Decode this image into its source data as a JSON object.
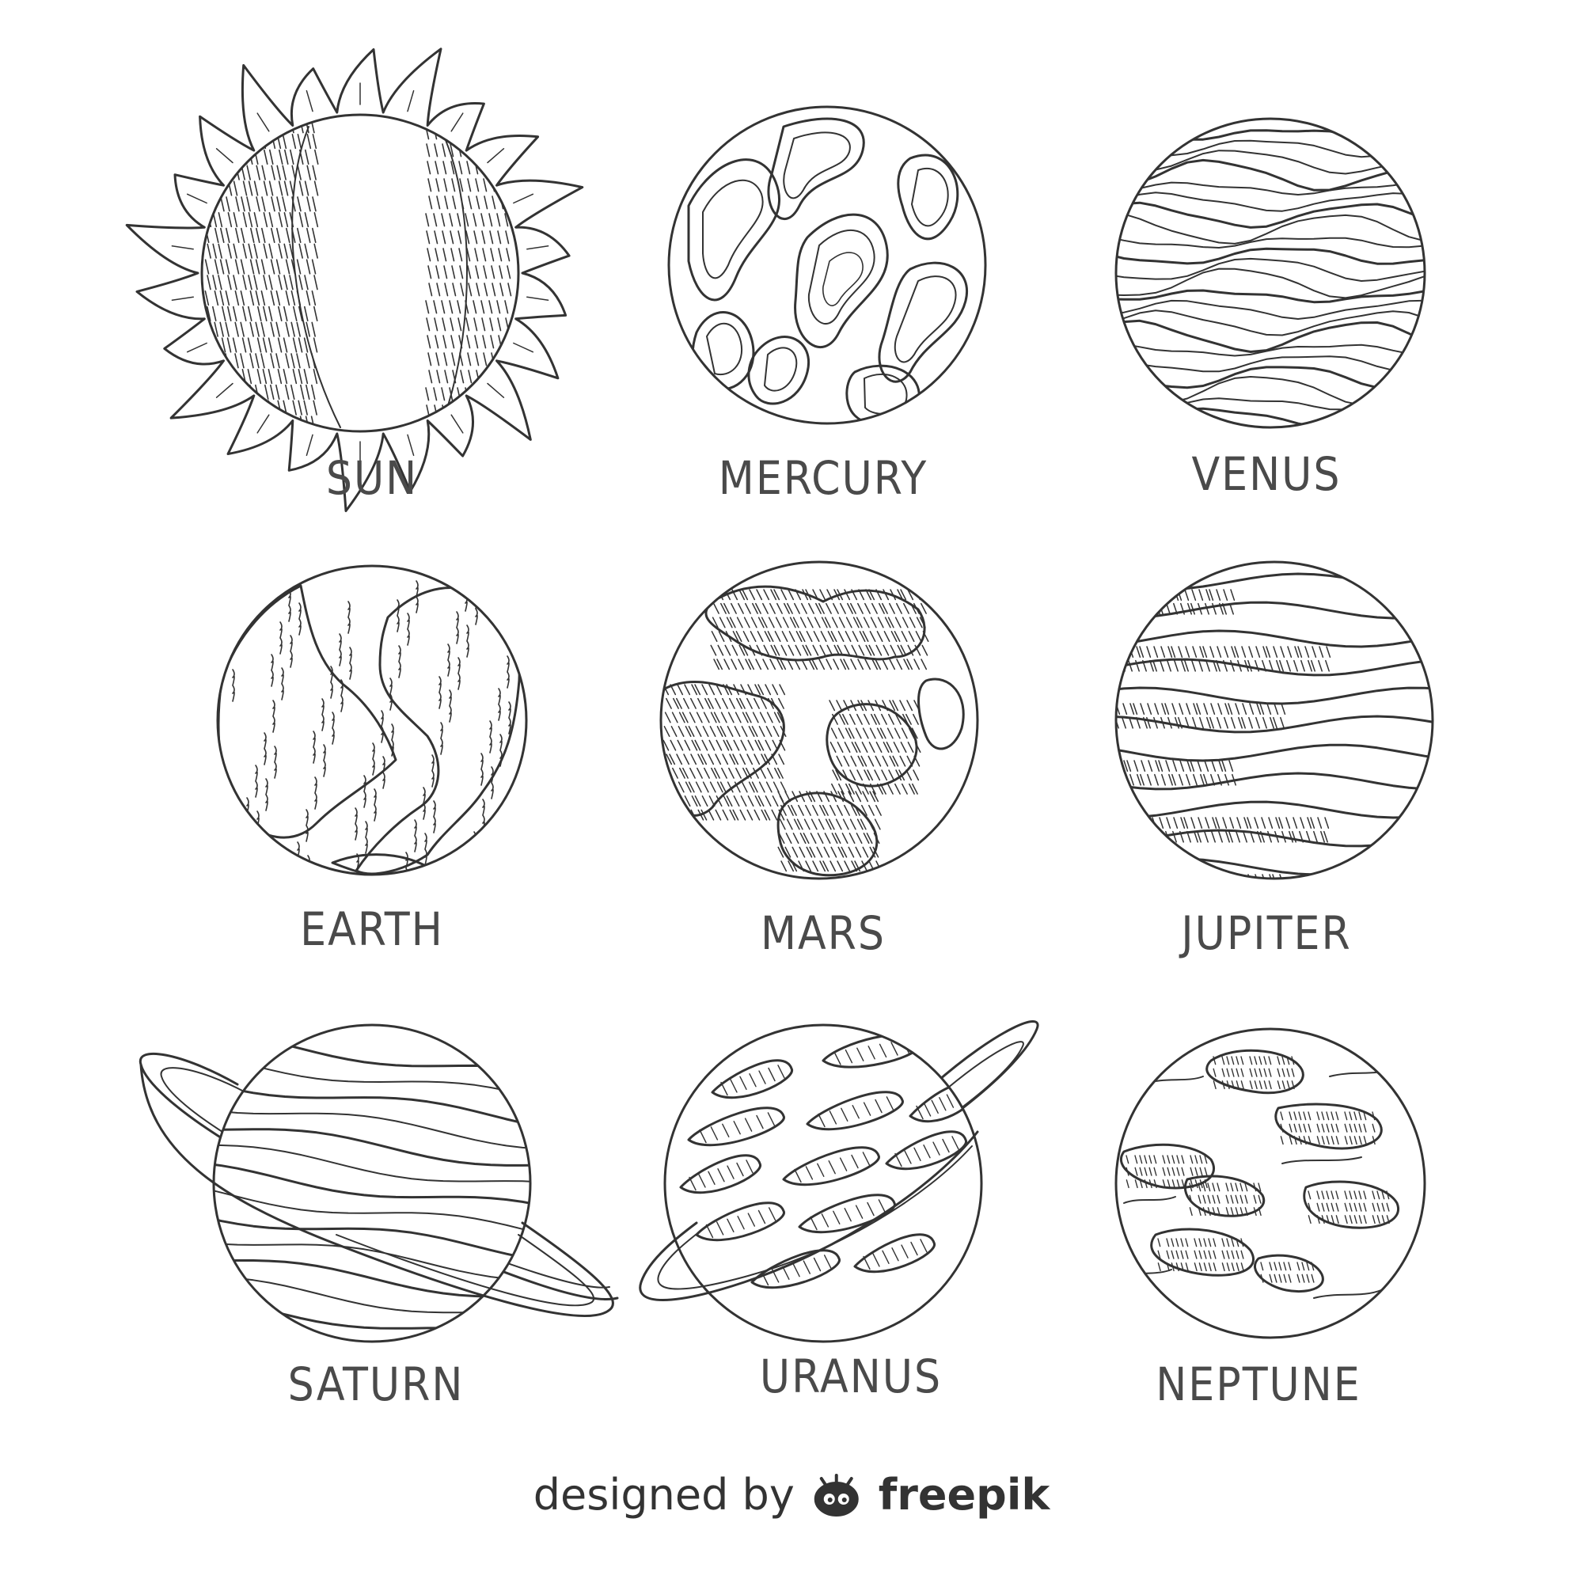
{
  "colors": {
    "background": "#ffffff",
    "line": "#333333",
    "label": "#4a4a4a"
  },
  "bodies": [
    {
      "id": "sun",
      "label": "SUN",
      "style": "sun"
    },
    {
      "id": "mercury",
      "label": "MERCURY",
      "style": "blobs"
    },
    {
      "id": "venus",
      "label": "VENUS",
      "style": "bands"
    },
    {
      "id": "earth",
      "label": "EARTH",
      "style": "continents"
    },
    {
      "id": "mars",
      "label": "MARS",
      "style": "patches"
    },
    {
      "id": "jupiter",
      "label": "JUPITER",
      "style": "striped-bands"
    },
    {
      "id": "saturn",
      "label": "SATURN",
      "style": "ringed-bands"
    },
    {
      "id": "uranus",
      "label": "URANUS",
      "style": "ringed-streaks"
    },
    {
      "id": "neptune",
      "label": "NEPTUNE",
      "style": "clouds"
    }
  ],
  "credit": {
    "prefix": "designed by",
    "logo_icon": "freepik-logo-icon",
    "brand": "freepik"
  }
}
